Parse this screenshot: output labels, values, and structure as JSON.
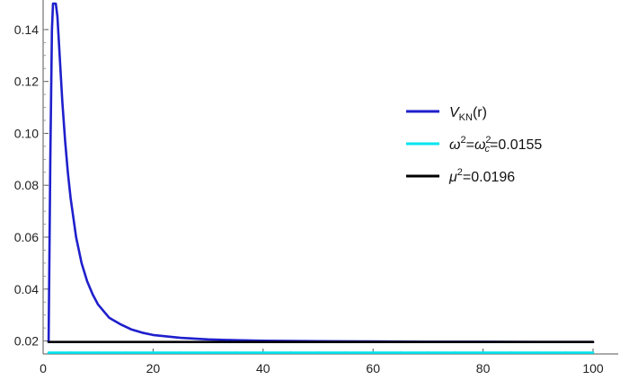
{
  "chart_data": {
    "type": "line",
    "xlim": [
      0,
      100
    ],
    "ylim": [
      0.015,
      0.15
    ],
    "xticks": [
      0,
      20,
      40,
      60,
      80,
      100
    ],
    "xtick_labels": [
      "0",
      "20",
      "40",
      "60",
      "80",
      "100"
    ],
    "yticks": [
      0.02,
      0.04,
      0.06,
      0.08,
      0.1,
      0.12,
      0.14
    ],
    "ytick_labels": [
      "0.02",
      "0.04",
      "0.06",
      "0.08",
      "0.10",
      "0.12",
      "0.14"
    ],
    "grid": false,
    "legend_position": "right",
    "series": [
      {
        "name": "V_KN(r)",
        "legend_main": "V",
        "legend_sub": "KN",
        "legend_rest": "(r)",
        "color": "#1f1fcc",
        "x": [
          1.0,
          1.3,
          1.6,
          1.8,
          2.0,
          2.3,
          2.6,
          3.0,
          3.5,
          4.0,
          4.5,
          5.0,
          6.0,
          7.0,
          8.0,
          9.0,
          10.0,
          12.0,
          14.0,
          16.0,
          18.0,
          20.0,
          25.0,
          30.0,
          35.0,
          40.0,
          50.0,
          60.0,
          70.0,
          80.0,
          90.0,
          100.0
        ],
        "y": [
          0.0196,
          0.09,
          0.14,
          0.15,
          0.15,
          0.15,
          0.145,
          0.13,
          0.112,
          0.097,
          0.085,
          0.075,
          0.06,
          0.05,
          0.043,
          0.038,
          0.034,
          0.029,
          0.0265,
          0.0245,
          0.0232,
          0.0223,
          0.0212,
          0.0206,
          0.0203,
          0.0201,
          0.0199,
          0.0198,
          0.0197,
          0.0197,
          0.0196,
          0.0196
        ]
      },
      {
        "name": "ω²=ω_c²=0.0155",
        "color": "#00e5ee",
        "x": [
          1.0,
          100.0
        ],
        "y": [
          0.0155,
          0.0155
        ]
      },
      {
        "name": "μ²=0.0196",
        "color": "#000000",
        "x": [
          1.0,
          100.0
        ],
        "y": [
          0.0196,
          0.0196
        ]
      }
    ]
  },
  "legend": {
    "entries": [
      {
        "main": "V",
        "sub": "KN",
        "rest": "(r)"
      },
      {
        "omega": "ω",
        "sup1": "2",
        "eq1": "=",
        "omega_c": "ω",
        "sup2": "2",
        "sub2": "c",
        "rest": "=0.0155"
      },
      {
        "mu": "μ",
        "sup": "2",
        "rest": "=0.0196"
      }
    ]
  }
}
